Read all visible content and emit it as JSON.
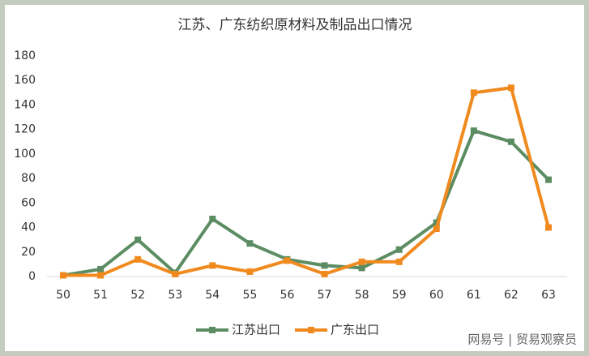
{
  "chart_data": {
    "type": "line",
    "title": "江苏、广东纺织原材料及制品出口情况",
    "categories": [
      "50",
      "51",
      "52",
      "53",
      "54",
      "55",
      "56",
      "57",
      "58",
      "59",
      "60",
      "61",
      "62",
      "63"
    ],
    "series": [
      {
        "name": "江苏出口",
        "color": "#5b8c62",
        "values": [
          1,
          6,
          30,
          3,
          47,
          27,
          14,
          9,
          7,
          22,
          44,
          119,
          110,
          79
        ]
      },
      {
        "name": "广东出口",
        "color": "#f08a1e",
        "values": [
          1,
          1,
          14,
          2,
          9,
          4,
          13,
          2,
          12,
          12,
          39,
          150,
          154,
          40
        ]
      }
    ],
    "ylim": [
      0,
      180
    ],
    "yticks": [
      0,
      20,
      40,
      60,
      80,
      100,
      120,
      140,
      160,
      180
    ],
    "grid": false,
    "legend": "bottom",
    "watermark": "网易号 | 贸易观察员"
  }
}
